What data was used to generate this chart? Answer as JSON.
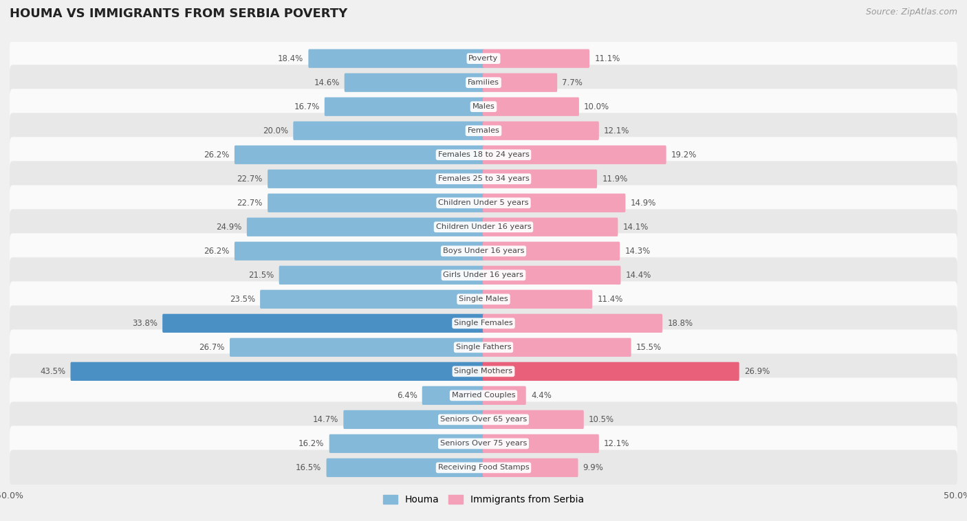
{
  "title": "HOUMA VS IMMIGRANTS FROM SERBIA POVERTY",
  "source": "Source: ZipAtlas.com",
  "categories": [
    "Poverty",
    "Families",
    "Males",
    "Females",
    "Females 18 to 24 years",
    "Females 25 to 34 years",
    "Children Under 5 years",
    "Children Under 16 years",
    "Boys Under 16 years",
    "Girls Under 16 years",
    "Single Males",
    "Single Females",
    "Single Fathers",
    "Single Mothers",
    "Married Couples",
    "Seniors Over 65 years",
    "Seniors Over 75 years",
    "Receiving Food Stamps"
  ],
  "houma_values": [
    18.4,
    14.6,
    16.7,
    20.0,
    26.2,
    22.7,
    22.7,
    24.9,
    26.2,
    21.5,
    23.5,
    33.8,
    26.7,
    43.5,
    6.4,
    14.7,
    16.2,
    16.5
  ],
  "serbia_values": [
    11.1,
    7.7,
    10.0,
    12.1,
    19.2,
    11.9,
    14.9,
    14.1,
    14.3,
    14.4,
    11.4,
    18.8,
    15.5,
    26.9,
    4.4,
    10.5,
    12.1,
    9.9
  ],
  "houma_color": "#85b9d9",
  "serbia_color": "#f4a0b8",
  "houma_highlight_color": "#4a90c4",
  "serbia_highlight_color": "#e8607a",
  "background_color": "#f0f0f0",
  "row_light_color": "#fafafa",
  "row_dark_color": "#e8e8e8",
  "label_color": "#555555",
  "value_label_color": "#555555",
  "title_color": "#222222",
  "max_val": 50.0,
  "legend_houma": "Houma",
  "legend_serbia": "Immigrants from Serbia"
}
